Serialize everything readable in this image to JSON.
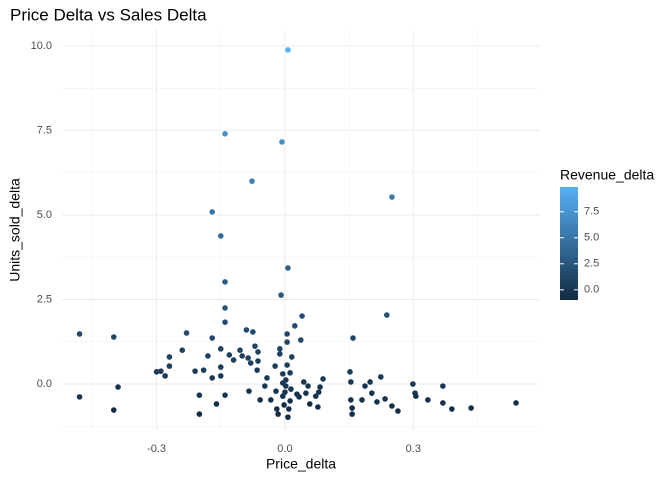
{
  "chart_data": {
    "type": "scatter",
    "title": "Price Delta vs Sales Delta",
    "x_label": "Price_delta",
    "y_label": "Units_sold_delta",
    "x": [
      -0.48,
      -0.48,
      -0.4,
      -0.4,
      -0.39,
      -0.3,
      -0.29,
      -0.28,
      -0.27,
      -0.27,
      -0.24,
      -0.23,
      -0.21,
      -0.2,
      -0.2,
      -0.19,
      -0.18,
      -0.17,
      -0.17,
      -0.16,
      -0.15,
      -0.15,
      -0.15,
      -0.14,
      -0.14,
      -0.14,
      -0.14,
      -0.14,
      -0.13,
      -0.12,
      -0.15,
      -0.17,
      -0.105,
      -0.1,
      -0.09,
      -0.086,
      -0.084,
      -0.08,
      -0.077,
      -0.075,
      -0.07,
      -0.065,
      -0.063,
      -0.063,
      -0.058,
      -0.047,
      -0.042,
      -0.033,
      -0.023,
      -0.021,
      -0.019,
      -0.016,
      -0.012,
      -0.012,
      -0.009,
      -0.007,
      -0.005,
      -0.005,
      -0.005,
      -0.002,
      0.0,
      0.002,
      0.002,
      0.005,
      0.005,
      0.005,
      0.007,
      0.007,
      0.007,
      0.009,
      0.012,
      0.012,
      0.014,
      0.016,
      0.023,
      0.028,
      0.033,
      0.037,
      0.04,
      0.044,
      0.049,
      0.054,
      0.058,
      0.072,
      0.077,
      0.079,
      0.082,
      0.089,
      0.152,
      0.154,
      0.154,
      0.157,
      0.157,
      0.159,
      0.18,
      0.187,
      0.199,
      0.203,
      0.215,
      0.224,
      0.234,
      0.238,
      0.25,
      0.25,
      0.264,
      0.299,
      0.304,
      0.306,
      0.334,
      0.369,
      0.369,
      0.39,
      0.435,
      0.54
    ],
    "y": [
      1.48,
      -0.38,
      1.39,
      -0.77,
      -0.09,
      0.36,
      0.38,
      0.24,
      0.53,
      0.8,
      1.0,
      1.51,
      0.38,
      -0.89,
      -0.33,
      0.41,
      0.83,
      0.18,
      1.36,
      -0.59,
      0.24,
      0.5,
      1.04,
      1.83,
      2.25,
      3.02,
      7.4,
      -0.33,
      0.86,
      0.71,
      4.38,
      5.09,
      1.0,
      0.83,
      1.6,
      0.77,
      -0.21,
      0.62,
      6.0,
      1.54,
      1.12,
      0.41,
      0.95,
      0.68,
      -0.47,
      -0.06,
      0.18,
      -0.47,
      0.53,
      -0.21,
      -0.74,
      -0.89,
      1.04,
      0.89,
      2.63,
      7.16,
      0.03,
      0.3,
      -0.36,
      -0.62,
      -0.24,
      0.12,
      -0.06,
      0.56,
      1.24,
      1.48,
      3.43,
      9.88,
      -0.98,
      -0.74,
      0.33,
      -0.5,
      -0.15,
      0.8,
      1.72,
      -0.3,
      -0.38,
      1.3,
      2.01,
      0.06,
      -0.27,
      -0.06,
      -0.59,
      -0.36,
      -0.68,
      -0.24,
      -0.09,
      0.15,
      0.36,
      0.06,
      -0.47,
      -0.71,
      -0.89,
      1.36,
      -0.47,
      -0.06,
      0.06,
      -0.27,
      -0.53,
      0.21,
      -0.44,
      2.04,
      5.53,
      -0.65,
      -0.8,
      0.0,
      -0.27,
      -0.36,
      -0.47,
      -0.06,
      -0.56,
      -0.74,
      -0.71,
      -0.56
    ],
    "xlim": [
      -0.521,
      0.596
    ],
    "ylim": [
      -1.36,
      10.47
    ],
    "xticks": [
      -0.3,
      {
        "value": 0,
        "label": "0.0"
      },
      0.3
    ],
    "yticks": [
      {
        "value": 0,
        "label": "0.0"
      },
      {
        "value": 2.5,
        "label": "2.5"
      },
      {
        "value": 5,
        "label": "5.0"
      },
      {
        "value": 7.5,
        "label": "7.5"
      },
      {
        "value": 10,
        "label": "10.0"
      }
    ],
    "grid": true,
    "color_legend": {
      "title": "Revenue_delta",
      "low": "#132B43",
      "high": "#56B1F7",
      "lim": [
        -0.98,
        9.88
      ],
      "ticks": [
        {
          "value": 0,
          "label": "0.0"
        },
        {
          "value": 2.5,
          "label": "2.5"
        },
        {
          "value": 5,
          "label": "5.0"
        },
        {
          "value": 7.5,
          "label": "7.5"
        }
      ],
      "values": [
        1.48,
        -0.38,
        1.39,
        -0.77,
        -0.09,
        0.36,
        0.38,
        0.24,
        0.53,
        0.8,
        1.0,
        1.51,
        0.38,
        -0.89,
        -0.33,
        0.41,
        0.83,
        0.18,
        1.36,
        -0.59,
        0.24,
        0.5,
        1.04,
        1.83,
        2.25,
        3.02,
        7.4,
        -0.33,
        0.86,
        0.71,
        4.38,
        5.09,
        1.0,
        0.83,
        1.6,
        0.77,
        -0.21,
        0.62,
        6.0,
        1.54,
        1.12,
        0.41,
        0.95,
        0.68,
        -0.47,
        -0.06,
        0.18,
        -0.47,
        0.53,
        -0.21,
        -0.74,
        -0.89,
        1.04,
        0.89,
        2.63,
        7.16,
        0.03,
        0.3,
        -0.36,
        -0.62,
        -0.24,
        0.12,
        -0.06,
        0.56,
        1.24,
        1.48,
        3.43,
        9.88,
        -0.98,
        -0.74,
        0.33,
        -0.5,
        -0.15,
        0.8,
        1.72,
        -0.3,
        -0.38,
        1.3,
        2.01,
        0.06,
        -0.27,
        -0.06,
        -0.59,
        -0.36,
        -0.68,
        -0.24,
        -0.09,
        0.15,
        0.36,
        0.06,
        -0.47,
        -0.71,
        -0.89,
        1.36,
        -0.47,
        -0.06,
        0.06,
        -0.27,
        -0.53,
        0.21,
        -0.44,
        2.04,
        5.53,
        -0.65,
        -0.8,
        0.0,
        -0.27,
        -0.36,
        -0.47,
        -0.06,
        -0.56,
        -0.74,
        -0.71,
        -0.56
      ]
    }
  }
}
